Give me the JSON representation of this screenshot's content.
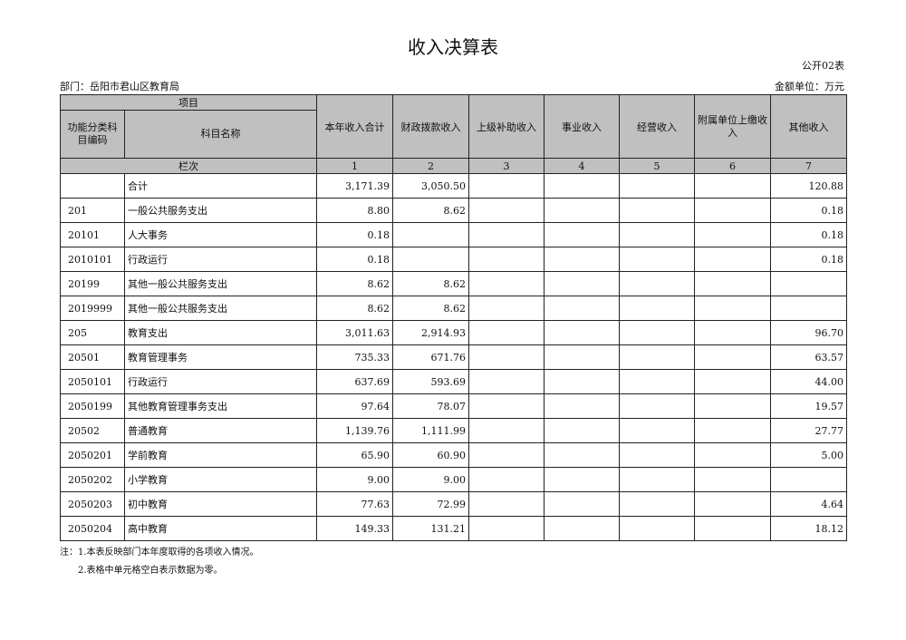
{
  "title": "收入决算表",
  "form_code": "公开02表",
  "department": "部门：岳阳市君山区教育局",
  "unit": "金额单位：万元",
  "header": {
    "project": "项目",
    "code": "功能分类科目编码",
    "name": "科目名称",
    "columns": [
      "本年收入合计",
      "财政拨款收入",
      "上级补助收入",
      "事业收入",
      "经营收入",
      "附属单位上缴收入",
      "其他收入"
    ],
    "row_label": "栏次",
    "column_numbers": [
      "1",
      "2",
      "3",
      "4",
      "5",
      "6",
      "7"
    ]
  },
  "rows": [
    {
      "code": "",
      "name": "合计",
      "values": [
        "3,171.39",
        "3,050.50",
        "",
        "",
        "",
        "",
        "120.88"
      ]
    },
    {
      "code": "201",
      "name": "一般公共服务支出",
      "values": [
        "8.80",
        "8.62",
        "",
        "",
        "",
        "",
        "0.18"
      ]
    },
    {
      "code": "20101",
      "name": "人大事务",
      "values": [
        "0.18",
        "",
        "",
        "",
        "",
        "",
        "0.18"
      ]
    },
    {
      "code": "2010101",
      "name": "行政运行",
      "values": [
        "0.18",
        "",
        "",
        "",
        "",
        "",
        "0.18"
      ]
    },
    {
      "code": "20199",
      "name": "其他一般公共服务支出",
      "values": [
        "8.62",
        "8.62",
        "",
        "",
        "",
        "",
        ""
      ]
    },
    {
      "code": "2019999",
      "name": "其他一般公共服务支出",
      "values": [
        "8.62",
        "8.62",
        "",
        "",
        "",
        "",
        ""
      ]
    },
    {
      "code": "205",
      "name": "教育支出",
      "values": [
        "3,011.63",
        "2,914.93",
        "",
        "",
        "",
        "",
        "96.70"
      ]
    },
    {
      "code": "20501",
      "name": "教育管理事务",
      "values": [
        "735.33",
        "671.76",
        "",
        "",
        "",
        "",
        "63.57"
      ]
    },
    {
      "code": "2050101",
      "name": "行政运行",
      "values": [
        "637.69",
        "593.69",
        "",
        "",
        "",
        "",
        "44.00"
      ]
    },
    {
      "code": "2050199",
      "name": "其他教育管理事务支出",
      "values": [
        "97.64",
        "78.07",
        "",
        "",
        "",
        "",
        "19.57"
      ]
    },
    {
      "code": "20502",
      "name": "普通教育",
      "values": [
        "1,139.76",
        "1,111.99",
        "",
        "",
        "",
        "",
        "27.77"
      ]
    },
    {
      "code": "2050201",
      "name": "学前教育",
      "values": [
        "65.90",
        "60.90",
        "",
        "",
        "",
        "",
        "5.00"
      ]
    },
    {
      "code": "2050202",
      "name": "小学教育",
      "values": [
        "9.00",
        "9.00",
        "",
        "",
        "",
        "",
        ""
      ]
    },
    {
      "code": "2050203",
      "name": "初中教育",
      "values": [
        "77.63",
        "72.99",
        "",
        "",
        "",
        "",
        "4.64"
      ]
    },
    {
      "code": "2050204",
      "name": "高中教育",
      "values": [
        "149.33",
        "131.21",
        "",
        "",
        "",
        "",
        "18.12"
      ]
    }
  ],
  "notes": [
    "注：1.本表反映部门本年度取得的各项收入情况。",
    "　　2.表格中单元格空白表示数据为零。"
  ]
}
